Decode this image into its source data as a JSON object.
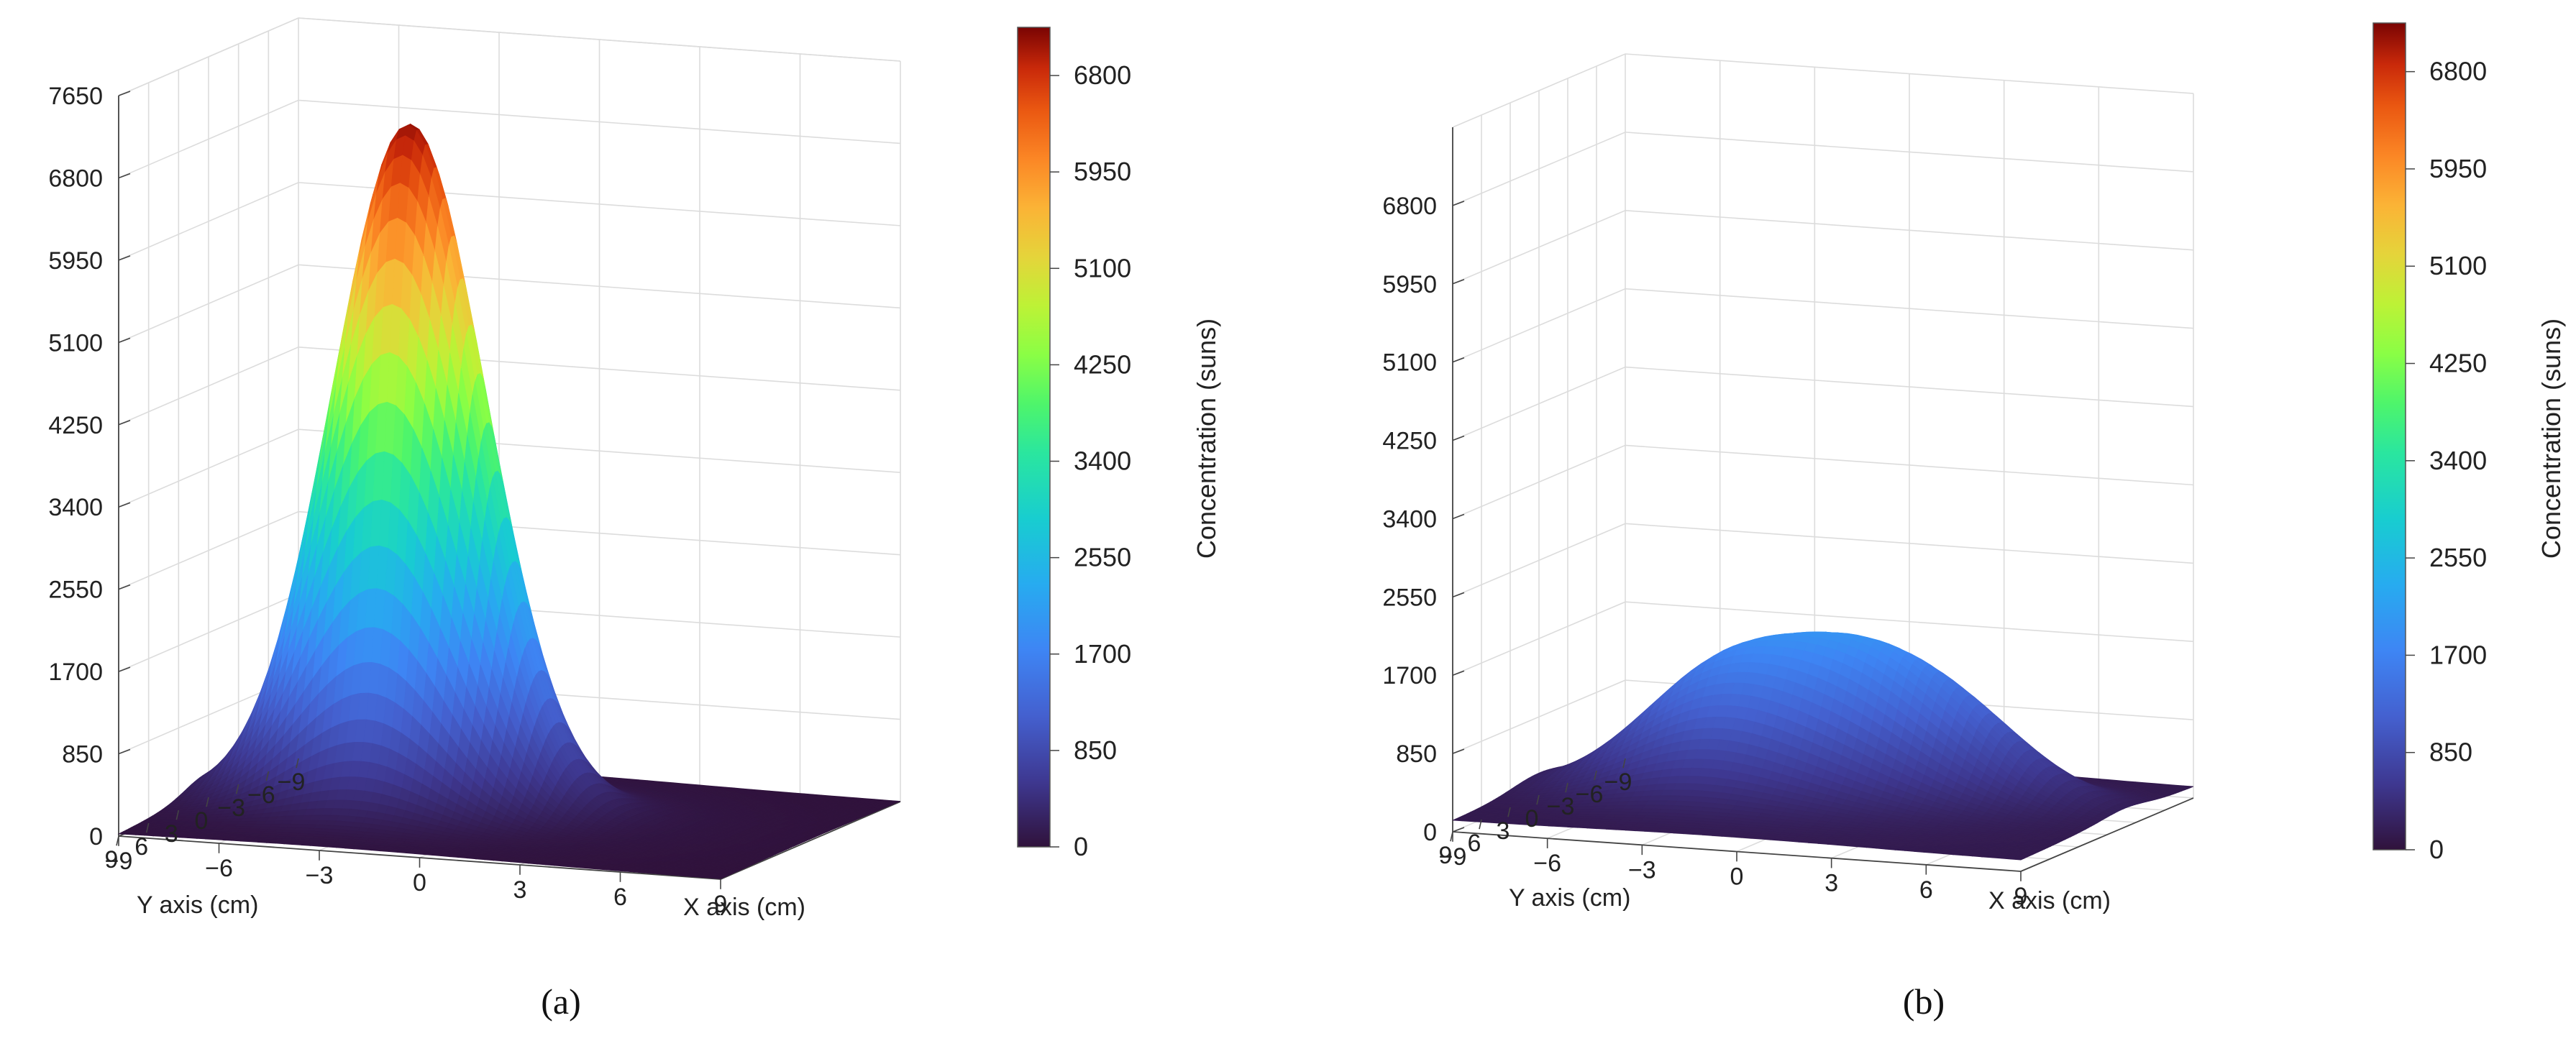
{
  "chart_data": [
    {
      "panel": "(a)",
      "type": "surface3d",
      "xlabel": "X axis (cm)",
      "ylabel": "Y axis (cm)",
      "colorbar_label": "Concentration (suns)",
      "x_ticks": [
        "−9",
        "−6",
        "−3",
        "0",
        "3",
        "6",
        "9"
      ],
      "y_ticks": [
        "−9",
        "−6",
        "−3",
        "0",
        "3",
        "6",
        "9"
      ],
      "z_ticks": [
        "0",
        "850",
        "1700",
        "2550",
        "3400",
        "4250",
        "5100",
        "5950",
        "6800",
        "7650"
      ],
      "zlim": [
        0,
        7650
      ],
      "colorbar_ticks": [
        "0",
        "850",
        "1700",
        "2550",
        "3400",
        "4250",
        "5100",
        "5950",
        "6800"
      ],
      "colorbar_range": [
        0,
        7225
      ],
      "colormap": "turbo",
      "surface": {
        "shape": "single-peak",
        "peak": 6950,
        "peak_x": -3,
        "peak_y": 0,
        "sigma_cm": 2.2
      },
      "grid": true
    },
    {
      "panel": "(b)",
      "type": "surface3d",
      "xlabel": "X axis (cm)",
      "ylabel": "Y axis (cm)",
      "colorbar_label": "Concentration (suns)",
      "x_ticks": [
        "−9",
        "−6",
        "−3",
        "0",
        "3",
        "6",
        "9"
      ],
      "y_ticks": [
        "−9",
        "−6",
        "−3",
        "0",
        "3",
        "6",
        "9"
      ],
      "z_ticks": [
        "0",
        "850",
        "1700",
        "2550",
        "3400",
        "4250",
        "5100",
        "5950",
        "6800"
      ],
      "zlim": [
        0,
        7650
      ],
      "colorbar_ticks": [
        "0",
        "850",
        "1700",
        "2550",
        "3400",
        "4250",
        "5100",
        "5950",
        "6800"
      ],
      "colorbar_range": [
        0,
        7225
      ],
      "colormap": "turbo",
      "surface": {
        "shape": "multi-hump",
        "peak": 1400,
        "humps": [
          [
            -3,
            0,
            1250
          ],
          [
            1,
            -1,
            950
          ],
          [
            4,
            -2,
            700
          ]
        ]
      },
      "grid": true
    }
  ]
}
